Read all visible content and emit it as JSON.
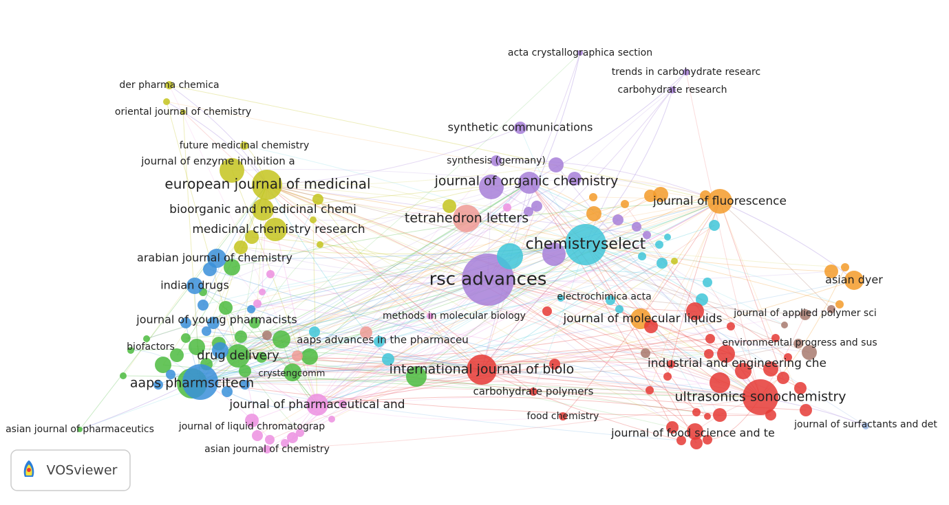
{
  "nodes": [
    {
      "label": "acta crystallographica section"
    },
    {
      "label": "trends in carbohydrate researc"
    },
    {
      "label": "carbohydrate research"
    },
    {
      "label": "der pharma chemica"
    },
    {
      "label": "oriental journal of chemistry"
    },
    {
      "label": "synthetic communications"
    },
    {
      "label": "future medicinal chemistry"
    },
    {
      "label": "journal of enzyme inhibition a"
    },
    {
      "label": "synthesis (germany)"
    },
    {
      "label": "european journal of medicinal"
    },
    {
      "label": "journal of organic chemistry"
    },
    {
      "label": "journal of fluorescence"
    },
    {
      "label": "bioorganic and medicinal chemi"
    },
    {
      "label": "tetrahedron letters"
    },
    {
      "label": "medicinal chemistry research"
    },
    {
      "label": "chemistryselect"
    },
    {
      "label": "arabian journal of chemistry"
    },
    {
      "label": "rsc advances"
    },
    {
      "label": "asian dyer"
    },
    {
      "label": "indian drugs"
    },
    {
      "label": "electrochimica acta"
    },
    {
      "label": "methods in molecular biology"
    },
    {
      "label": "journal of applied polymer sci"
    },
    {
      "label": "journal of molecular liquids"
    },
    {
      "label": "journal of young pharmacists"
    },
    {
      "label": "aaps advances in the pharmaceu"
    },
    {
      "label": "environmental progress and sus"
    },
    {
      "label": "biofactors"
    },
    {
      "label": "drug delivery"
    },
    {
      "label": "industrial and engineering che"
    },
    {
      "label": "international journal of biolo"
    },
    {
      "label": "crystengcomm"
    },
    {
      "label": "aaps pharmscitech"
    },
    {
      "label": "carbohydrate polymers"
    },
    {
      "label": "ultrasonics sonochemistry"
    },
    {
      "label": "journal of pharmaceutical and"
    },
    {
      "label": "food chemistry"
    },
    {
      "label": "journal of surfactants and det"
    },
    {
      "label": "asian journal of pharmaceutics"
    },
    {
      "label": "journal of liquid chromatograp"
    },
    {
      "label": "journal of food science and te"
    },
    {
      "label": "asian journal of chemistry"
    }
  ],
  "brand": "VOSviewer"
}
